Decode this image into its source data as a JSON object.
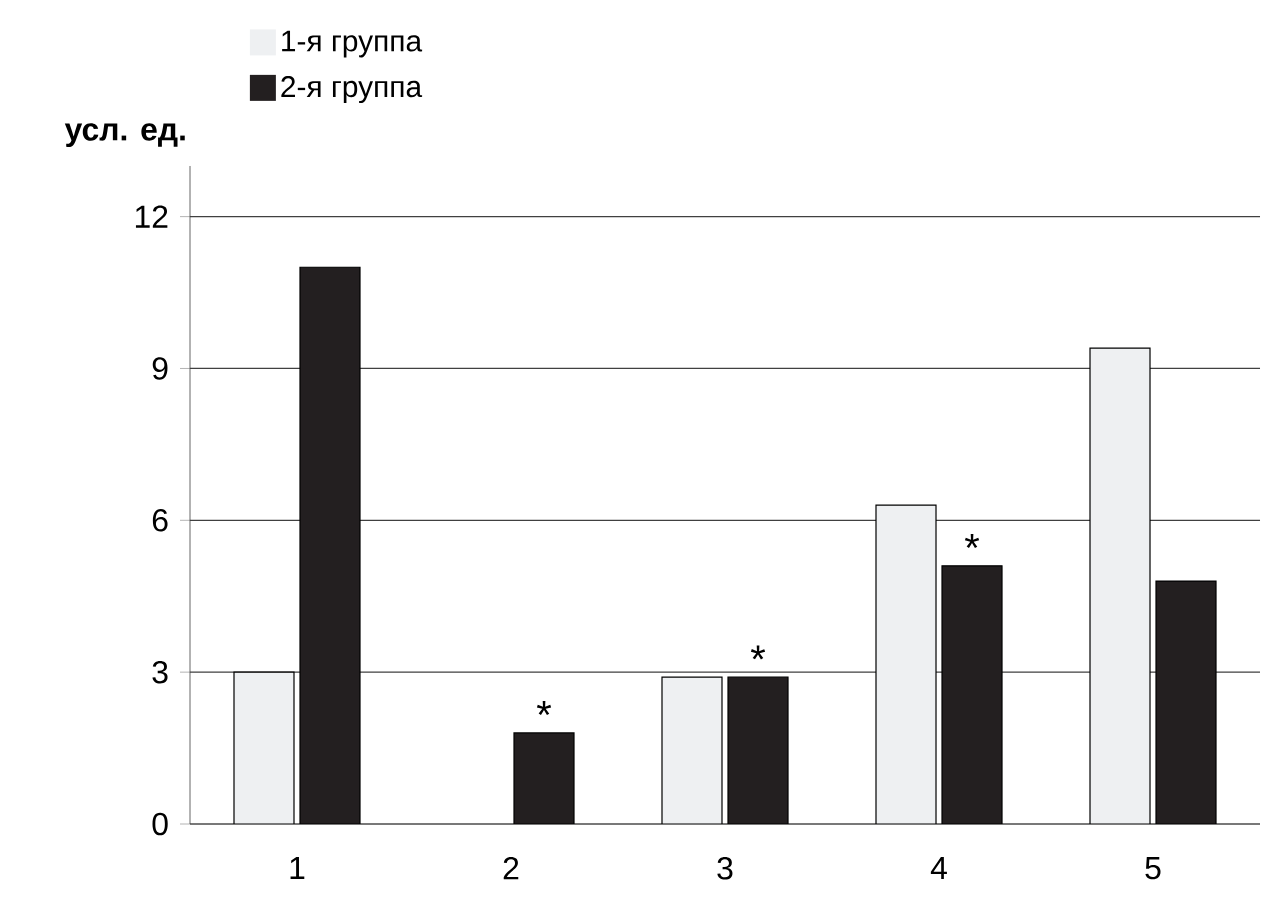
{
  "chart_data": {
    "type": "bar",
    "ylabel": "усл. ед.",
    "categories": [
      "1",
      "2",
      "3",
      "4",
      "5"
    ],
    "series": [
      {
        "name": "1-я группа",
        "color": "#eef0f2",
        "values": [
          3.0,
          null,
          2.9,
          6.3,
          9.4
        ]
      },
      {
        "name": "2-я группа",
        "color": "#231f20",
        "values": [
          11.0,
          1.8,
          2.9,
          5.1,
          4.8
        ]
      }
    ],
    "ylim": [
      0,
      13
    ],
    "yticks": [
      0,
      3,
      6,
      9,
      12
    ],
    "grid": "y",
    "legend": "top left",
    "annotations": [
      {
        "text": "*",
        "x": "2",
        "y": 1.8
      },
      {
        "text": "*",
        "x": "3",
        "y": 2.9
      },
      {
        "text": "*",
        "x": "4",
        "y": 5.1
      }
    ]
  }
}
